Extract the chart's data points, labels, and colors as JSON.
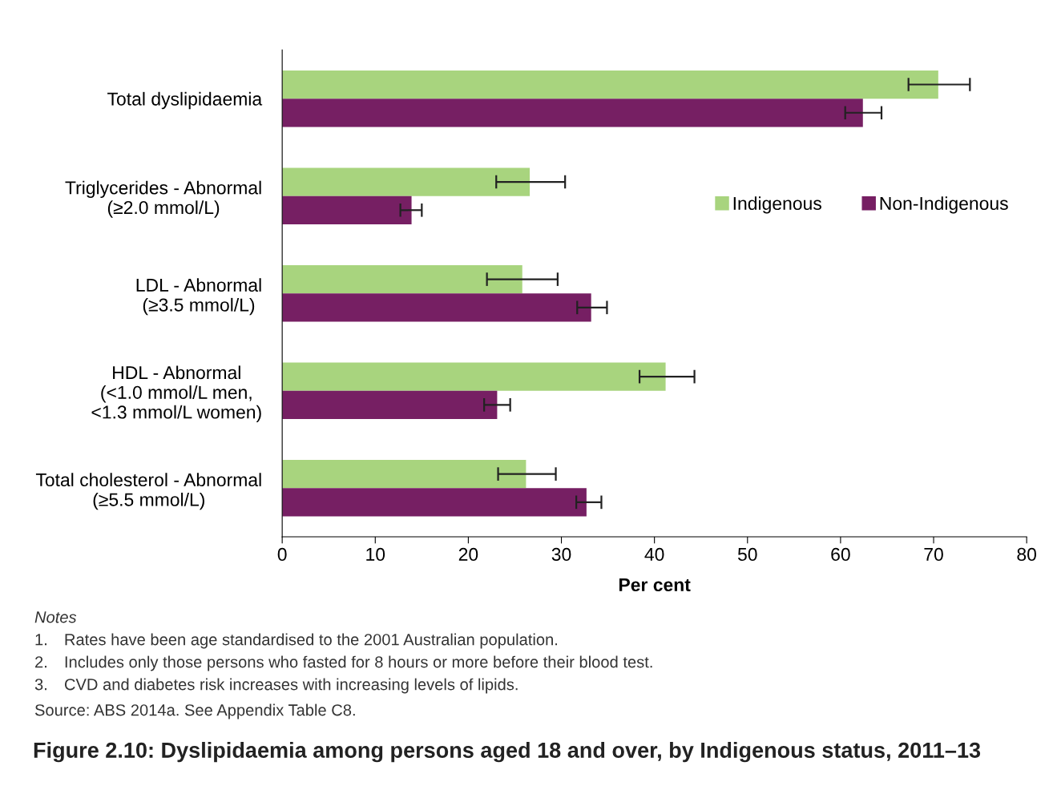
{
  "chart_data": {
    "type": "bar",
    "orientation": "horizontal",
    "title": "Figure 2.10: Dyslipidaemia among persons aged 18 and over, by Indigenous status, 2011–13",
    "xlabel": "Per cent",
    "categories": [
      "Total dyslipidaemia",
      "Triglycerides - Abnormal\n(≥2.0 mmol/L)",
      "LDL - Abnormal\n(≥3.5 mmol/L)",
      "HDL - Abnormal\n(<1.0 mmol/L men,\n<1.3 mmol/L women)",
      "Total cholesterol - Abnormal\n(≥5.5 mmol/L)"
    ],
    "series": [
      {
        "name": "Indigenous",
        "color": "#a8d47e",
        "values": [
          70.5,
          26.6,
          25.8,
          41.2,
          26.2
        ],
        "errors": [
          [
            67.3,
            73.9
          ],
          [
            23.0,
            30.4
          ],
          [
            22.0,
            29.6
          ],
          [
            38.4,
            44.3
          ],
          [
            23.2,
            29.4
          ]
        ]
      },
      {
        "name": "Non-Indigenous",
        "color": "#761f63",
        "values": [
          62.4,
          13.9,
          33.2,
          23.1,
          32.7
        ],
        "errors": [
          [
            60.5,
            64.4
          ],
          [
            12.7,
            15.0
          ],
          [
            31.7,
            34.9
          ],
          [
            21.7,
            24.5
          ],
          [
            31.6,
            34.3
          ]
        ]
      }
    ],
    "xlim": [
      0,
      80
    ],
    "xticks": [
      0,
      10,
      20,
      30,
      40,
      50,
      60,
      70,
      80
    ],
    "grid": false,
    "legend": "right",
    "annotations": [
      "Notes",
      "1. Rates have been age standardised to the 2001 Australian population.",
      "2. Includes only those persons who fasted for 8 hours or more before their blood test.",
      "3. CVD and diabetes risk increases with increasing levels of lipids.",
      "Source: ABS 2014a. See Appendix Table C8."
    ]
  }
}
